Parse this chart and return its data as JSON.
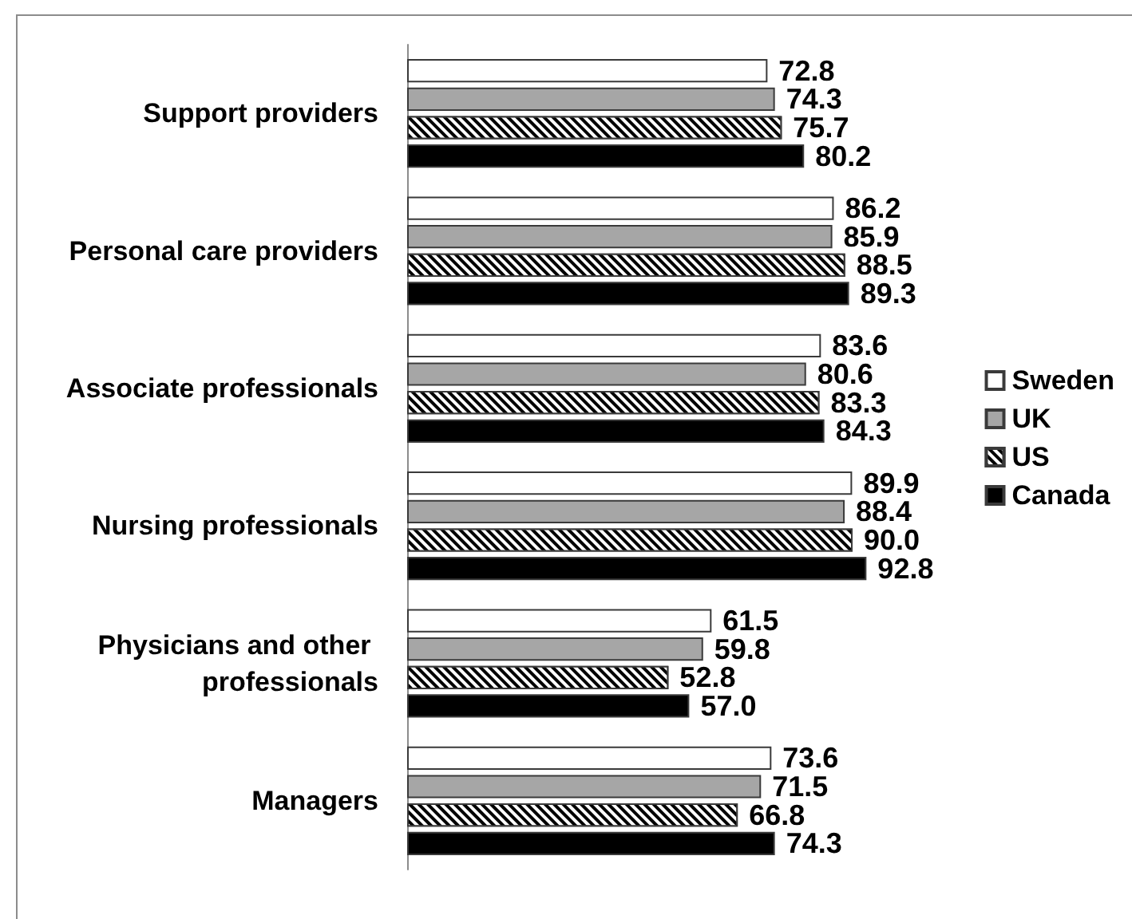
{
  "chart_data": {
    "type": "bar",
    "orientation": "horizontal",
    "categories": [
      "Support providers",
      "Personal care providers",
      "Associate professionals",
      "Nursing professionals",
      "Physicians and other professionals",
      "Managers"
    ],
    "series": [
      {
        "name": "Sweden",
        "color": "#ffffff",
        "values": [
          72.8,
          86.2,
          83.6,
          89.9,
          61.5,
          73.6
        ],
        "value_labels": [
          "72.8",
          "86.2",
          "83.6",
          "89.9",
          "61.5",
          "73.6"
        ]
      },
      {
        "name": "UK",
        "color": "#a6a6a6",
        "values": [
          74.3,
          85.9,
          80.6,
          88.4,
          59.8,
          71.5
        ],
        "value_labels": [
          "74.3",
          "85.9",
          "80.6",
          "88.4",
          "59.8",
          "71.5"
        ]
      },
      {
        "name": "US",
        "color": "#000000",
        "values": [
          75.7,
          88.5,
          83.3,
          90.0,
          52.8,
          66.8
        ],
        "value_labels": [
          "75.7",
          "88.5",
          "83.3",
          "90.0",
          "52.8",
          "66.8"
        ]
      },
      {
        "name": "Canada",
        "color": "#000000",
        "values": [
          80.2,
          89.3,
          84.3,
          92.8,
          57.0,
          74.3
        ],
        "value_labels": [
          "80.2",
          "89.3",
          "84.3",
          "92.8",
          "57.0",
          "74.3"
        ]
      }
    ],
    "legend": "right",
    "tick_labels": "y"
  }
}
